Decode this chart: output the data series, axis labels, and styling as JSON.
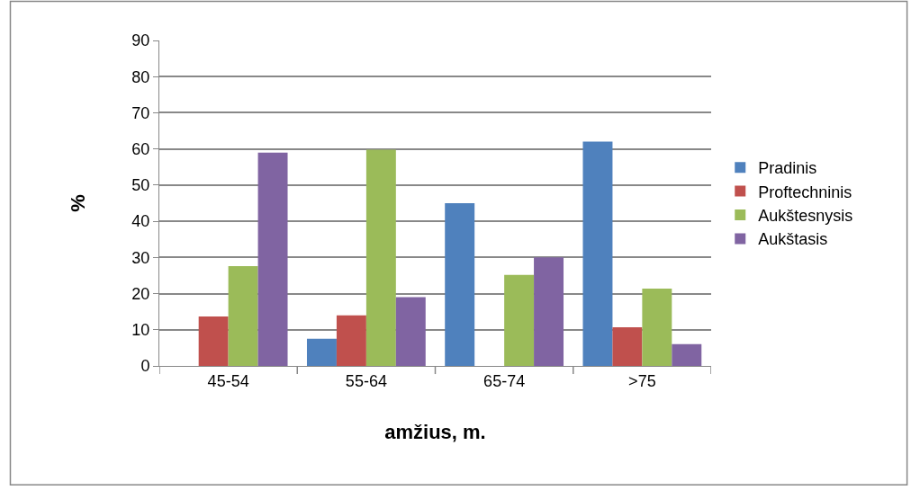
{
  "chart_data": {
    "type": "bar",
    "xlabel": "amžius, m.",
    "ylabel": "%",
    "categories": [
      "45-54",
      "55-64",
      "65-74",
      ">75"
    ],
    "series": [
      {
        "name": "Pradinis",
        "color": "#4f81bd",
        "values": [
          0,
          7.5,
          45,
          62
        ]
      },
      {
        "name": "Proftechninis",
        "color": "#c0504d",
        "values": [
          13.7,
          14,
          0,
          10.7
        ]
      },
      {
        "name": "Aukštesnysis",
        "color": "#9bbb59",
        "values": [
          27.6,
          59.8,
          25.2,
          21.4
        ]
      },
      {
        "name": "Aukštasis",
        "color": "#8064a2",
        "values": [
          59,
          19,
          30,
          6
        ]
      }
    ],
    "ylim": [
      0,
      90
    ],
    "yticks": [
      0,
      10,
      20,
      30,
      40,
      50,
      60,
      70,
      80,
      90
    ],
    "grid": "y",
    "legend": "right"
  }
}
